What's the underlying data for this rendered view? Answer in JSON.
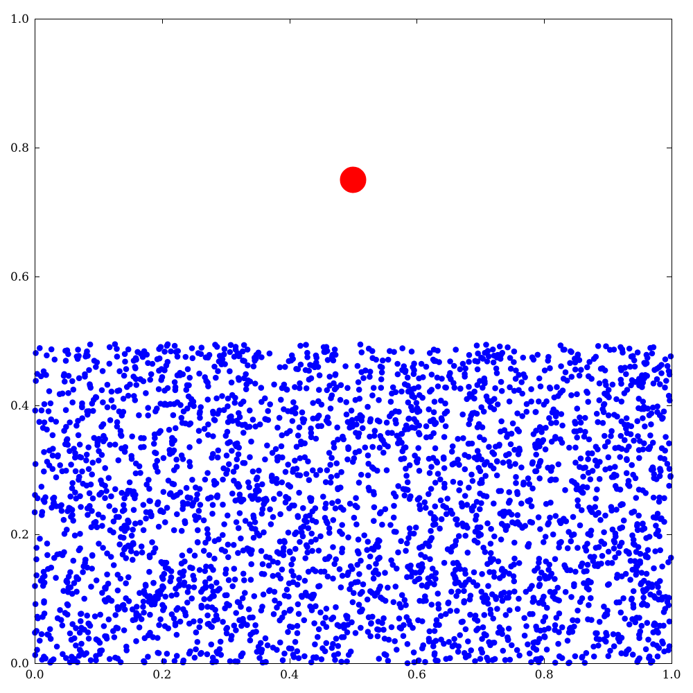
{
  "chart_data": {
    "type": "scatter",
    "title": "",
    "xlabel": "",
    "ylabel": "",
    "xlim": [
      0.0,
      1.0
    ],
    "ylim": [
      0.0,
      1.0
    ],
    "grid": false,
    "legend": "none",
    "x_ticks": [
      "0.0",
      "0.2",
      "0.4",
      "0.6",
      "0.8",
      "1.0"
    ],
    "y_ticks": [
      "0.0",
      "0.2",
      "0.4",
      "0.6",
      "0.8",
      "1.0"
    ],
    "series": [
      {
        "color": "#0000ff",
        "marker": "circle",
        "count": 3000,
        "distribution": "uniform",
        "x_range": [
          0.0,
          1.0
        ],
        "y_range": [
          0.0,
          0.495
        ]
      },
      {
        "color": "#ff0000",
        "marker": "circle",
        "marker_scale": "large",
        "points": [
          [
            0.5,
            0.75
          ]
        ]
      }
    ]
  }
}
